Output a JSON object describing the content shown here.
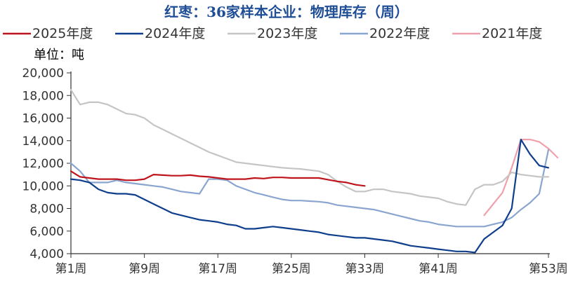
{
  "chart_data": {
    "type": "line",
    "title": "红枣：36家样本企业：物理库存（周）",
    "unit_label": "单位：吨",
    "ylim": [
      4000,
      20000
    ],
    "y_ticks": [
      4000,
      6000,
      8000,
      10000,
      12000,
      14000,
      16000,
      18000,
      20000
    ],
    "y_tick_labels": [
      "4,000",
      "6,000",
      "8,000",
      "10,000",
      "12,000",
      "14,000",
      "16,000",
      "18,000",
      "20,000"
    ],
    "x_range": [
      1,
      53
    ],
    "x_ticks": [
      1,
      9,
      17,
      25,
      33,
      41,
      53
    ],
    "x_tick_labels": [
      "第1周",
      "第9周",
      "第17周",
      "第25周",
      "第33周",
      "第41周",
      "第53周"
    ],
    "legend_position": "top",
    "grid": false,
    "series": [
      {
        "name": "2025年度",
        "color": "#c0141c",
        "x": [
          1,
          2,
          3,
          4,
          5,
          6,
          7,
          8,
          9,
          10,
          11,
          12,
          13,
          14,
          15,
          16,
          17,
          18,
          19,
          20,
          21,
          22,
          23,
          24,
          25,
          26,
          27,
          28,
          29,
          30,
          31,
          32,
          33
        ],
        "values": [
          11300,
          10800,
          10700,
          10600,
          10600,
          10600,
          10500,
          10500,
          10600,
          11000,
          10950,
          10900,
          10900,
          10950,
          10850,
          10800,
          10700,
          10600,
          10600,
          10600,
          10700,
          10650,
          10750,
          10750,
          10700,
          10700,
          10700,
          10700,
          10550,
          10400,
          10300,
          10100,
          10000
        ]
      },
      {
        "name": "2024年度",
        "color": "#0e3e8c",
        "x": [
          1,
          2,
          3,
          4,
          5,
          6,
          7,
          8,
          9,
          10,
          11,
          12,
          13,
          14,
          15,
          16,
          17,
          18,
          19,
          20,
          21,
          22,
          23,
          24,
          25,
          26,
          27,
          28,
          29,
          30,
          31,
          32,
          33,
          34,
          35,
          36,
          37,
          38,
          39,
          40,
          41,
          42,
          43,
          44,
          45,
          46,
          47,
          48,
          49,
          50,
          51,
          52,
          53
        ],
        "values": [
          10600,
          10500,
          10300,
          9700,
          9400,
          9300,
          9300,
          9200,
          8800,
          8400,
          8000,
          7600,
          7400,
          7200,
          7000,
          6900,
          6800,
          6600,
          6500,
          6200,
          6200,
          6300,
          6400,
          6300,
          6200,
          6100,
          6000,
          5900,
          5700,
          5600,
          5500,
          5400,
          5400,
          5300,
          5200,
          5100,
          4900,
          4700,
          4600,
          4500,
          4400,
          4300,
          4200,
          4200,
          4100,
          5300,
          5900,
          6500,
          8000,
          14100,
          12800,
          11800,
          11600
        ]
      },
      {
        "name": "2023年度",
        "color": "#c5c5c5",
        "x": [
          1,
          2,
          3,
          4,
          5,
          6,
          7,
          8,
          9,
          10,
          11,
          12,
          13,
          14,
          15,
          16,
          17,
          18,
          19,
          20,
          21,
          22,
          23,
          24,
          25,
          26,
          27,
          28,
          29,
          30,
          31,
          32,
          33,
          34,
          35,
          36,
          37,
          38,
          39,
          40,
          41,
          42,
          43,
          44,
          45,
          46,
          47,
          48,
          49,
          50,
          51,
          52,
          53
        ],
        "values": [
          18500,
          17200,
          17400,
          17400,
          17200,
          16800,
          16400,
          16300,
          16000,
          15400,
          15000,
          14600,
          14200,
          13800,
          13400,
          13000,
          12700,
          12400,
          12100,
          12000,
          11900,
          11800,
          11700,
          11600,
          11550,
          11500,
          11400,
          11300,
          11000,
          10400,
          9900,
          9500,
          9500,
          9700,
          9700,
          9500,
          9400,
          9300,
          9100,
          9000,
          8900,
          8600,
          8400,
          8300,
          9700,
          10100,
          10100,
          10400,
          11200,
          11000,
          10900,
          10800,
          10800
        ]
      },
      {
        "name": "2022年度",
        "color": "#8aa5cf",
        "x": [
          1,
          2,
          3,
          4,
          5,
          6,
          7,
          8,
          9,
          10,
          11,
          12,
          13,
          14,
          15,
          16,
          17,
          18,
          19,
          20,
          21,
          22,
          23,
          24,
          25,
          26,
          27,
          28,
          29,
          30,
          31,
          32,
          33,
          34,
          35,
          36,
          37,
          38,
          39,
          40,
          41,
          42,
          43,
          44,
          45,
          46,
          47,
          48,
          49,
          50,
          51,
          52,
          53
        ],
        "values": [
          12000,
          11300,
          10300,
          10300,
          10300,
          10500,
          10300,
          10200,
          10100,
          10000,
          9900,
          9700,
          9500,
          9400,
          9300,
          10600,
          10600,
          10500,
          10000,
          9700,
          9400,
          9200,
          9000,
          8800,
          8700,
          8700,
          8650,
          8600,
          8500,
          8300,
          8200,
          8100,
          8000,
          7900,
          7700,
          7500,
          7300,
          7100,
          6900,
          6800,
          6600,
          6500,
          6400,
          6400,
          6400,
          6400,
          6600,
          6800,
          7200,
          7900,
          8500,
          9300,
          13200
        ]
      },
      {
        "name": "2021年度",
        "color": "#f0a0aa",
        "x": [
          46,
          47,
          48,
          49,
          50,
          51,
          52,
          53,
          54
        ],
        "values": [
          7400,
          8400,
          9400,
          11600,
          14100,
          14100,
          13900,
          13300,
          12500
        ]
      }
    ]
  }
}
